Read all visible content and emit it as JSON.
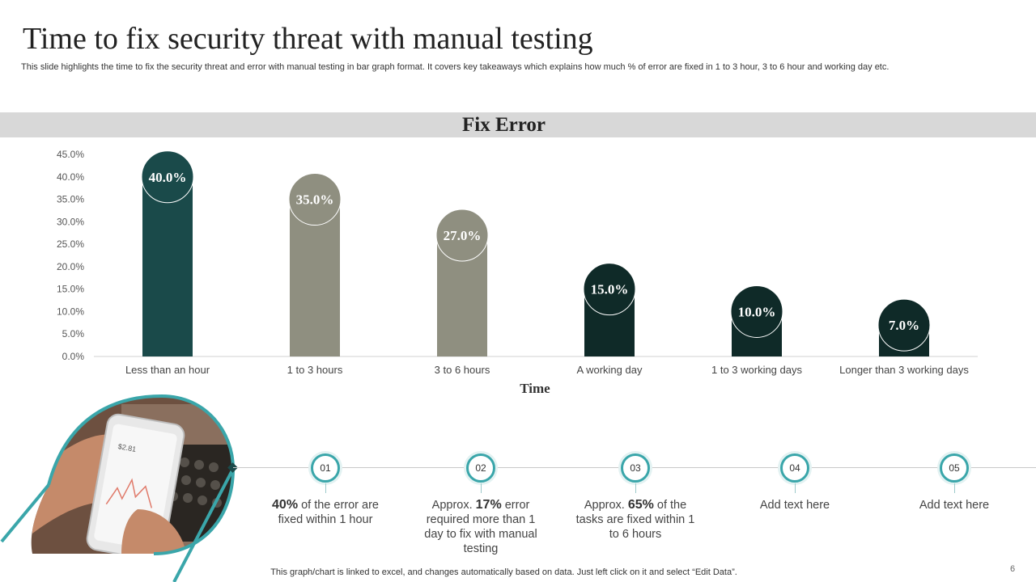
{
  "slide": {
    "title": "Time to fix security threat with manual testing",
    "subtitle": "This slide highlights the time to fix  the security threat and error with manual testing in bar graph format. It covers key takeaways which explains how much % of error are fixed  in 1 to 3 hour, 3 to 6 hour and working day etc.",
    "footer": "This graph/chart is linked to excel,  and changes automatically based on data. Just left click on it and select “Edit Data”.",
    "page_number": "6"
  },
  "chart_data": {
    "type": "bar",
    "title": "Fix Error",
    "xlabel": "Time",
    "ylabel": "",
    "categories": [
      "Less than an hour",
      "1 to 3 hours",
      "3 to 6 hours",
      "A working day",
      "1 to 3 working days",
      "Longer than 3 working days"
    ],
    "values": [
      40.0,
      35.0,
      27.0,
      15.0,
      10.0,
      7.0
    ],
    "data_labels": [
      "40.0%",
      "35.0%",
      "27.0%",
      "15.0%",
      "10.0%",
      "7.0%"
    ],
    "bar_colors": [
      "#1a4a4a",
      "#8f8f80",
      "#8f8f80",
      "#0f2a28",
      "#0f2a28",
      "#0f2a28"
    ],
    "ylim": [
      0,
      45
    ],
    "yticks": [
      "0.0%",
      "5.0%",
      "10.0%",
      "15.0%",
      "20.0%",
      "25.0%",
      "30.0%",
      "35.0%",
      "40.0%",
      "45.0%"
    ],
    "grid": false,
    "legend": "none"
  },
  "timeline": {
    "accent": "#3aa6aa",
    "steps": [
      {
        "num": "01",
        "lead": "",
        "bold": "40%",
        "rest": " of the error are fixed within 1 hour"
      },
      {
        "num": "02",
        "lead": "Approx. ",
        "bold": "17%",
        "rest": " error required more than 1 day to fix with manual testing"
      },
      {
        "num": "03",
        "lead": "Approx. ",
        "bold": "65%",
        "rest": " of the tasks are fixed within 1 to 6 hours"
      },
      {
        "num": "04",
        "lead": "Add text here",
        "bold": "",
        "rest": ""
      },
      {
        "num": "05",
        "lead": "Add text here",
        "bold": "",
        "rest": ""
      }
    ]
  },
  "photo": {
    "screen_readout": "$2.81"
  }
}
